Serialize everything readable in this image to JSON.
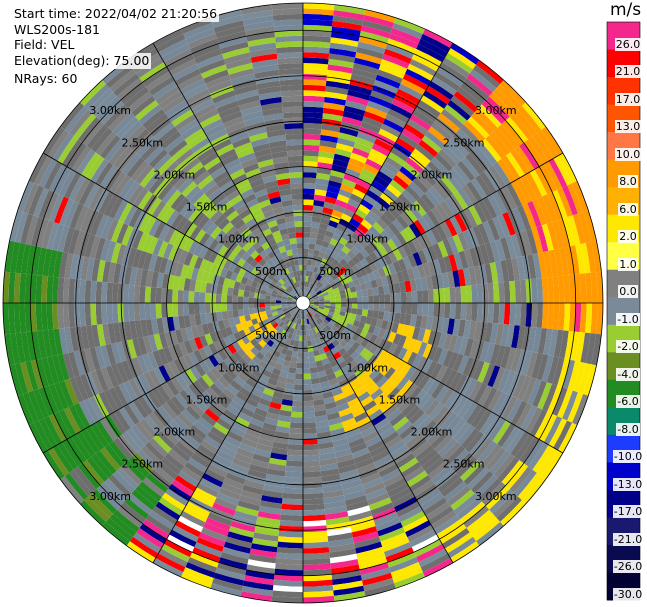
{
  "header": {
    "start_time": "Start time: 2022/04/02 21:20:56",
    "site": "WLS200s-181",
    "field": "Field: VEL",
    "elevation": "Elevation(deg): 75.00",
    "nrays": "NRays: 60"
  },
  "colorbar": {
    "unit": "m/s",
    "ticks": [
      "26.0",
      "21.0",
      "17.0",
      "13.0",
      "10.0",
      "8.0",
      "6.0",
      "2.0",
      "1.0",
      "0.0",
      "-1.0",
      "-2.0",
      "-4.0",
      "-6.0",
      "-8.0",
      "-10.0",
      "-13.0",
      "-17.0",
      "-21.0",
      "-26.0",
      "-30.0"
    ],
    "colors": [
      "#f4288c",
      "#ff0000",
      "#ff3300",
      "#ff5500",
      "#ff7744",
      "#ff9a00",
      "#ffb000",
      "#ffe800",
      "#ffff44",
      "#808080",
      "#7a8a99",
      "#9acd32",
      "#6b8e23",
      "#228b22",
      "#0a8a6a",
      "#1e3cff",
      "#0000cd",
      "#00008b",
      "#191970",
      "#0a0a50",
      "#000033"
    ]
  },
  "chart_data": {
    "type": "heatmap",
    "projection": "polar PPI",
    "field": "VEL",
    "units": "m/s",
    "nrays": 60,
    "range_ring_labels": [
      "500m",
      "1.00km",
      "1.50km",
      "2.00km",
      "2.50km",
      "3.00km"
    ],
    "range_ring_km": [
      0.5,
      1.0,
      1.5,
      2.0,
      2.5,
      3.0
    ],
    "color_range": [
      -30,
      30
    ],
    "dominant_value_range": [
      -1,
      1
    ],
    "features": [
      {
        "sector_deg": [
          0,
          40
        ],
        "values": [
          2,
          26
        ]
      },
      {
        "sector_deg": [
          40,
          90
        ],
        "values": [
          2,
          13
        ]
      },
      {
        "sector_deg": [
          100,
          160
        ],
        "values": [
          2,
          10
        ]
      },
      {
        "sector_deg": [
          160,
          210
        ],
        "values": [
          -17,
          26
        ]
      },
      {
        "sector_deg": [
          220,
          280
        ],
        "values": [
          -6,
          -1
        ]
      },
      {
        "sector_deg": [
          280,
          360
        ],
        "values": [
          -2,
          2
        ]
      }
    ]
  }
}
